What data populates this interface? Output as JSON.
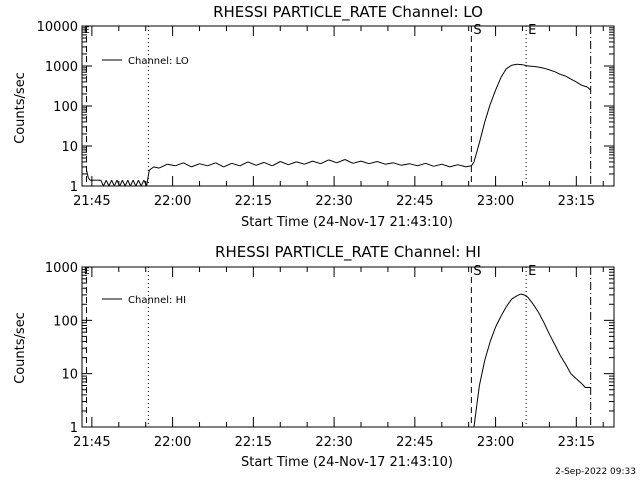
{
  "footer_timestamp": "2-Sep-2022 09:33",
  "chart_data": [
    {
      "type": "line",
      "title": "RHESSI PARTICLE_RATE Channel: LO",
      "xlabel": "Start Time (24-Nov-17 21:43:10)",
      "ylabel": "Counts/sec",
      "yscale": "log",
      "xlim": [
        "21:43:10",
        "23:22:00"
      ],
      "ylim": [
        1,
        10000
      ],
      "x_tick_labels": [
        "21:45",
        "22:00",
        "22:15",
        "22:30",
        "22:45",
        "23:00",
        "23:15"
      ],
      "y_tick_labels": [
        "1",
        "10",
        "100",
        "1000",
        "10000"
      ],
      "legend": {
        "entries": [
          "Channel: LO"
        ],
        "placement": "top-left"
      },
      "markers": [
        {
          "label": "",
          "time": "21:44:00",
          "style": "dashed"
        },
        {
          "label": "",
          "time": "21:55:30",
          "style": "dotted"
        },
        {
          "label": "S",
          "time": "22:55:30",
          "style": "dashed"
        },
        {
          "label": "E",
          "time": "23:05:40",
          "style": "dotted"
        },
        {
          "label": "",
          "time": "23:17:40",
          "style": "dash-dot"
        }
      ],
      "corner_label": "E",
      "series": [
        {
          "name": "Channel: LO",
          "x": [
            "21:44:00",
            "21:44:20",
            "21:44:40",
            "21:45:00",
            "21:45:30",
            "21:46:00",
            "21:46:40",
            "21:47:10",
            "21:47:40",
            "21:48:10",
            "21:48:40",
            "21:49:10",
            "21:49:40",
            "21:50:10",
            "21:50:40",
            "21:51:10",
            "21:51:40",
            "21:52:10",
            "21:52:40",
            "21:53:10",
            "21:53:40",
            "21:54:10",
            "21:54:40",
            "21:55:10",
            "21:55:40",
            "21:56:30",
            "21:57:30",
            "21:59:00",
            "22:00:30",
            "22:02:00",
            "22:03:30",
            "22:05:00",
            "22:06:30",
            "22:08:00",
            "22:09:30",
            "22:11:00",
            "22:12:30",
            "22:14:00",
            "22:15:30",
            "22:17:00",
            "22:18:30",
            "22:20:00",
            "22:21:30",
            "22:23:00",
            "22:24:30",
            "22:26:00",
            "22:27:30",
            "22:29:00",
            "22:30:30",
            "22:32:00",
            "22:33:30",
            "22:35:00",
            "22:36:30",
            "22:38:00",
            "22:39:30",
            "22:41:00",
            "22:42:30",
            "22:44:00",
            "22:45:30",
            "22:47:00",
            "22:48:30",
            "22:50:00",
            "22:51:30",
            "22:53:00",
            "22:54:30",
            "22:55:30",
            "22:56:00",
            "22:57:00",
            "22:58:00",
            "22:59:00",
            "23:00:00",
            "23:01:00",
            "23:02:00",
            "23:03:00",
            "23:04:00",
            "23:05:00",
            "23:06:00",
            "23:07:00",
            "23:08:00",
            "23:09:00",
            "23:10:00",
            "23:11:00",
            "23:12:00",
            "23:13:00",
            "23:14:00",
            "23:15:00",
            "23:16:00",
            "23:17:00",
            "23:17:40"
          ],
          "y": [
            2.5,
            1.6,
            1.4,
            1.4,
            1.4,
            1.4,
            1.4,
            1.0,
            1.4,
            1.0,
            1.4,
            1.0,
            1.4,
            1.0,
            1.4,
            1.0,
            1.4,
            1.0,
            1.4,
            1.0,
            1.4,
            1.0,
            1.4,
            1.0,
            2.5,
            3.0,
            2.8,
            3.5,
            3.2,
            3.8,
            3.0,
            3.6,
            3.2,
            3.8,
            3.0,
            3.7,
            3.2,
            4.0,
            3.3,
            3.9,
            3.2,
            4.1,
            3.4,
            4.0,
            3.5,
            4.2,
            3.6,
            4.5,
            3.8,
            4.6,
            3.7,
            4.2,
            3.6,
            4.1,
            3.5,
            3.8,
            3.3,
            3.6,
            3.2,
            3.7,
            3.1,
            3.5,
            3.0,
            3.4,
            3.0,
            3.2,
            4.0,
            12,
            40,
            110,
            250,
            520,
            850,
            1050,
            1100,
            1080,
            1000,
            980,
            940,
            880,
            800,
            720,
            620,
            560,
            470,
            400,
            330,
            300,
            250
          ]
        }
      ]
    },
    {
      "type": "line",
      "title": "RHESSI PARTICLE_RATE Channel: HI",
      "xlabel": "Start Time (24-Nov-17 21:43:10)",
      "ylabel": "Counts/sec",
      "yscale": "log",
      "xlim": [
        "21:43:10",
        "23:22:00"
      ],
      "ylim": [
        1,
        1000
      ],
      "x_tick_labels": [
        "21:45",
        "22:00",
        "22:15",
        "22:30",
        "22:45",
        "23:00",
        "23:15"
      ],
      "y_tick_labels": [
        "1",
        "10",
        "100",
        "1000"
      ],
      "legend": {
        "entries": [
          "Channel: HI"
        ],
        "placement": "top-left"
      },
      "markers": [
        {
          "label": "",
          "time": "21:44:00",
          "style": "dashed"
        },
        {
          "label": "",
          "time": "21:55:30",
          "style": "dotted"
        },
        {
          "label": "S",
          "time": "22:55:30",
          "style": "dashed"
        },
        {
          "label": "E",
          "time": "23:05:40",
          "style": "dotted"
        },
        {
          "label": "",
          "time": "23:17:40",
          "style": "dash-dot"
        }
      ],
      "corner_label": "E",
      "series": [
        {
          "name": "Channel: HI",
          "x": [
            "22:56:00",
            "22:56:30",
            "22:57:00",
            "22:58:00",
            "22:59:00",
            "23:00:00",
            "23:01:00",
            "23:02:00",
            "23:03:00",
            "23:04:00",
            "23:04:40",
            "23:05:20",
            "23:06:00",
            "23:07:00",
            "23:08:00",
            "23:09:00",
            "23:10:00",
            "23:11:00",
            "23:12:00",
            "23:13:00",
            "23:14:00",
            "23:15:00",
            "23:16:00",
            "23:16:40",
            "23:17:40"
          ],
          "y": [
            1.0,
            2.5,
            6,
            18,
            40,
            75,
            120,
            180,
            250,
            290,
            310,
            300,
            270,
            200,
            140,
            90,
            55,
            35,
            22,
            15,
            10,
            8,
            6.5,
            5.5,
            5.5
          ]
        }
      ]
    }
  ]
}
